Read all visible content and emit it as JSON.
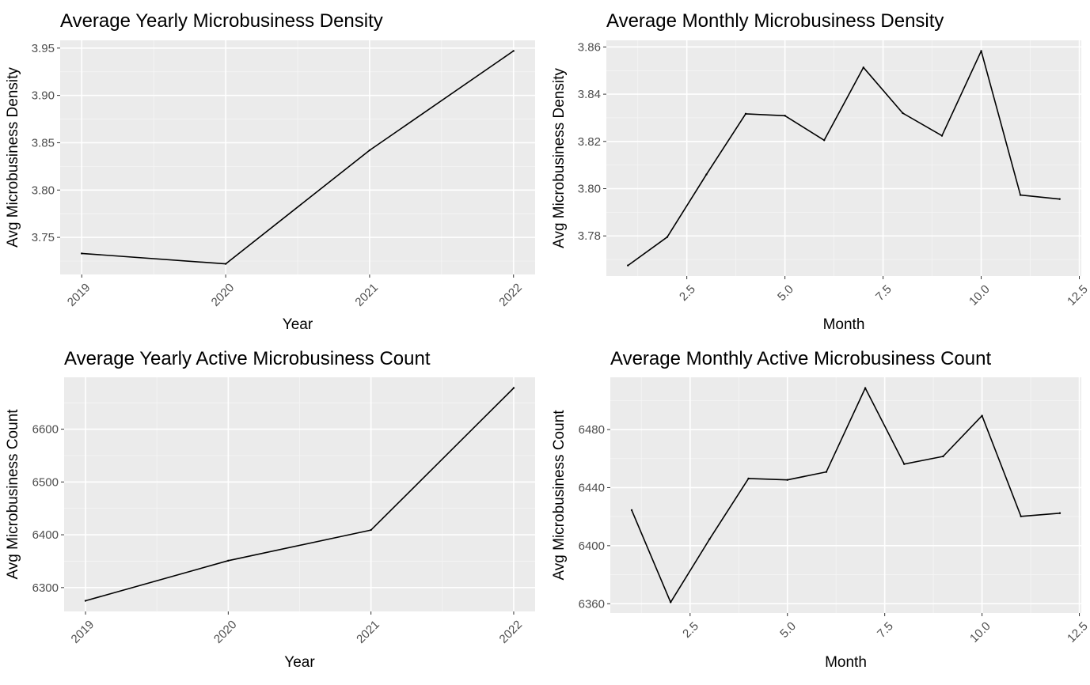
{
  "colors": {
    "panel_background": "#ebebeb",
    "grid_major": "#ffffff",
    "grid_minor": "#f5f5f5",
    "line": "#000000",
    "tick_text": "#4d4d4d"
  },
  "chart_data": [
    {
      "type": "line",
      "title": "Average Yearly Microbusiness Density",
      "xlabel": "Year",
      "ylabel": "Avg Microbusiness Density",
      "x_tick_labels": [
        "2019",
        "2020",
        "2021",
        "2022"
      ],
      "y_tick_labels": [
        "3.75",
        "3.80",
        "3.85",
        "3.90",
        "3.95"
      ],
      "x": [
        2019,
        2020,
        2021,
        2022
      ],
      "y": [
        3.733,
        3.722,
        3.842,
        3.947
      ],
      "xlim": [
        2018.85,
        2022.15
      ],
      "ylim": [
        3.7108,
        3.9582
      ],
      "grid": true
    },
    {
      "type": "line",
      "title": "Average Monthly Microbusiness Density",
      "xlabel": "Month",
      "ylabel": "Avg Microbusiness Density",
      "x_tick_labels": [
        "2.5",
        "5.0",
        "7.5",
        "10.0",
        "12.5"
      ],
      "y_tick_labels": [
        "3.78",
        "3.80",
        "3.82",
        "3.84",
        "3.86"
      ],
      "x": [
        1,
        2,
        3,
        4,
        5,
        6,
        7,
        8,
        9,
        10,
        11,
        12
      ],
      "y": [
        3.7675,
        3.7795,
        3.806,
        3.8317,
        3.8309,
        3.8205,
        3.8513,
        3.832,
        3.8224,
        3.8583,
        3.7973,
        3.7956
      ],
      "xlim": [
        0.45,
        12.55
      ],
      "ylim": [
        3.763,
        3.8628
      ],
      "grid": true
    },
    {
      "type": "line",
      "title": "Average Yearly Active Microbusiness Count",
      "xlabel": "Year",
      "ylabel": "Avg Microbusiness Count",
      "x_tick_labels": [
        "2019",
        "2020",
        "2021",
        "2022"
      ],
      "y_tick_labels": [
        "6300",
        "6400",
        "6500",
        "6600"
      ],
      "x": [
        2019,
        2020,
        2021,
        2022
      ],
      "y": [
        6275,
        6351,
        6409,
        6678
      ],
      "xlim": [
        2018.85,
        2022.15
      ],
      "ylim": [
        6254.8,
        6698.2
      ],
      "grid": true
    },
    {
      "type": "line",
      "title": "Average Monthly Active Microbusiness Count",
      "xlabel": "Month",
      "ylabel": "Avg Microbusiness Count",
      "x_tick_labels": [
        "2.5",
        "5.0",
        "7.5",
        "10.0",
        "12.5"
      ],
      "y_tick_labels": [
        "6360",
        "6400",
        "6440",
        "6480"
      ],
      "x": [
        1,
        2,
        3,
        4,
        5,
        6,
        7,
        8,
        9,
        10,
        11,
        12
      ],
      "y": [
        6424.5,
        6361,
        6404.5,
        6446.3,
        6445.3,
        6450.8,
        6508.6,
        6456.2,
        6461.5,
        6489.5,
        6420.2,
        6422.4
      ],
      "xlim": [
        0.45,
        12.55
      ],
      "ylim": [
        6353.6,
        6516.0
      ],
      "grid": true
    }
  ]
}
